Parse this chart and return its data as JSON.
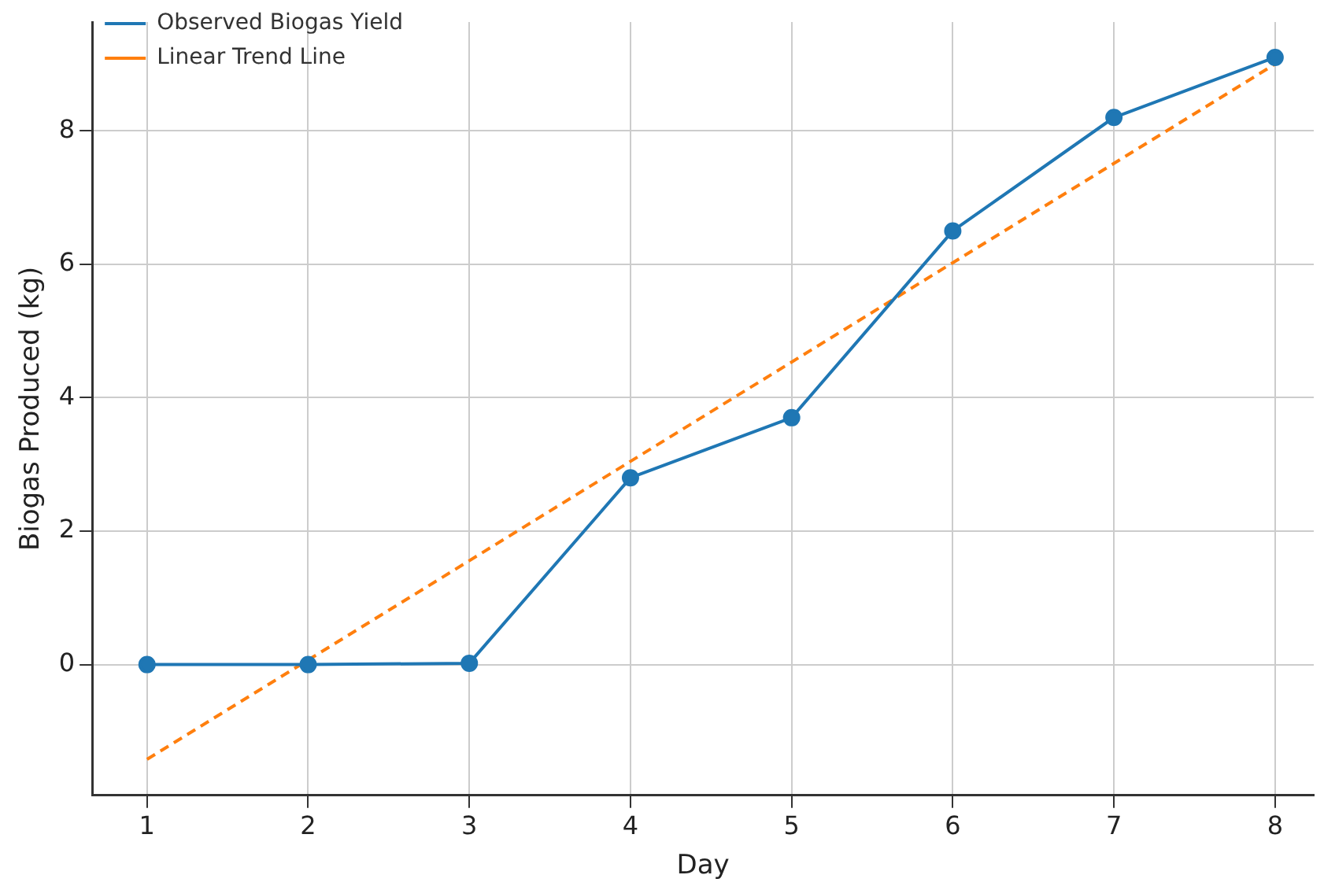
{
  "chart_data": {
    "type": "line",
    "xlabel": "Day",
    "ylabel": "Biogas Produced (kg)",
    "x": [
      1,
      2,
      3,
      4,
      5,
      6,
      7,
      8
    ],
    "series": [
      {
        "name": "Observed Biogas Yield",
        "color": "#1f77b4",
        "values": [
          0,
          0,
          0.02,
          2.8,
          3.7,
          6.5,
          8.2,
          9.1
        ],
        "marker": "circle",
        "line_style": "solid"
      },
      {
        "name": "Linear Trend Line",
        "color": "#ff7f0e",
        "x": [
          1,
          8
        ],
        "values": [
          -1.42,
          9.0
        ],
        "marker": "none",
        "line_style": "dashed"
      }
    ],
    "xlim": [
      0.66,
      8.24
    ],
    "xticks": [
      1,
      2,
      3,
      4,
      5,
      6,
      7,
      8
    ],
    "ylim": [
      -1.96,
      9.63
    ],
    "yticks": [
      0,
      2,
      4,
      6,
      8
    ],
    "grid": true,
    "legend": "top left"
  }
}
